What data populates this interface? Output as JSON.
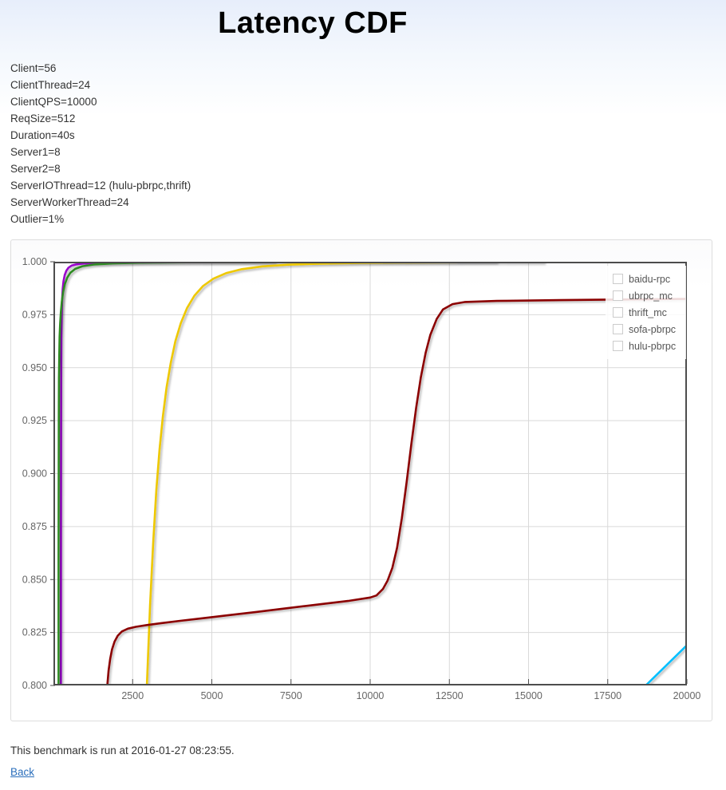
{
  "page": {
    "title": "Latency CDF"
  },
  "params": [
    "Client=56",
    "ClientThread=24",
    "ClientQPS=10000",
    "ReqSize=512",
    "Duration=40s",
    "Server1=8",
    "Server2=8",
    "ServerIOThread=12 (hulu-pbrpc,thrift)",
    "ServerWorkerThread=24",
    "Outlier=1%"
  ],
  "footer": {
    "note": "This benchmark is run at 2016-01-27 08:23:55.",
    "back_label": "Back"
  },
  "colors": {
    "plot_border": "#4d4d4d",
    "gridline": "#d9d9d9",
    "tick_label": "#666666",
    "legend_text": "#555555",
    "link_blue": "#2a6ebb"
  },
  "chart_data": {
    "type": "line",
    "title": "Latency CDF",
    "xlabel": "",
    "ylabel": "",
    "xlim": [
      0,
      20000
    ],
    "ylim": [
      0.8,
      1.0
    ],
    "x_ticks": [
      2500,
      5000,
      7500,
      10000,
      12500,
      15000,
      17500,
      20000
    ],
    "y_ticks": [
      1.0,
      0.975,
      0.95,
      0.925,
      0.9,
      0.875,
      0.85,
      0.825,
      0.8
    ],
    "grid": true,
    "legend_position": "top-right",
    "series": [
      {
        "name": "baidu-rpc",
        "color": "#9902cc",
        "points": [
          [
            235,
            0.8
          ],
          [
            237,
            0.87
          ],
          [
            240,
            0.91
          ],
          [
            243,
            0.94
          ],
          [
            246,
            0.955
          ],
          [
            250,
            0.964
          ],
          [
            256,
            0.9715
          ],
          [
            264,
            0.9775
          ],
          [
            276,
            0.9828
          ],
          [
            293,
            0.9872
          ],
          [
            318,
            0.9908
          ],
          [
            355,
            0.9937
          ],
          [
            405,
            0.9957
          ],
          [
            475,
            0.9972
          ],
          [
            575,
            0.9982
          ],
          [
            700,
            0.9987
          ],
          [
            900,
            0.9991
          ],
          [
            1300,
            0.9994
          ],
          [
            2000,
            0.9996
          ],
          [
            3000,
            0.99975
          ],
          [
            4800,
            0.99985
          ],
          [
            7000,
            0.9999
          ]
        ]
      },
      {
        "name": "ubrpc_mc",
        "color": "#2d8b22",
        "points": [
          [
            160,
            0.8
          ],
          [
            162,
            0.86
          ],
          [
            165,
            0.9
          ],
          [
            169,
            0.925
          ],
          [
            175,
            0.945
          ],
          [
            183,
            0.956
          ],
          [
            195,
            0.9645
          ],
          [
            212,
            0.9708
          ],
          [
            235,
            0.9762
          ],
          [
            265,
            0.9812
          ],
          [
            305,
            0.9857
          ],
          [
            360,
            0.9895
          ],
          [
            435,
            0.9925
          ],
          [
            535,
            0.9948
          ],
          [
            685,
            0.9966
          ],
          [
            915,
            0.9979
          ],
          [
            1270,
            0.9987
          ],
          [
            1870,
            0.9992
          ],
          [
            2770,
            0.99955
          ],
          [
            4200,
            0.99972
          ],
          [
            6500,
            0.99985
          ],
          [
            10000,
            0.99993
          ],
          [
            14000,
            1.0
          ]
        ]
      },
      {
        "name": "thrift_mc",
        "color": "#eec800",
        "points": [
          [
            2950,
            0.8
          ],
          [
            3050,
            0.838
          ],
          [
            3150,
            0.868
          ],
          [
            3250,
            0.8925
          ],
          [
            3350,
            0.9115
          ],
          [
            3450,
            0.9265
          ],
          [
            3570,
            0.9405
          ],
          [
            3700,
            0.952
          ],
          [
            3850,
            0.9625
          ],
          [
            4020,
            0.971
          ],
          [
            4220,
            0.9782
          ],
          [
            4450,
            0.984
          ],
          [
            4720,
            0.9885
          ],
          [
            5050,
            0.992
          ],
          [
            5450,
            0.9946
          ],
          [
            5950,
            0.9965
          ],
          [
            6600,
            0.9978
          ],
          [
            7400,
            0.9986
          ],
          [
            8400,
            0.9991
          ],
          [
            9700,
            0.99945
          ],
          [
            11500,
            0.99965
          ],
          [
            13500,
            0.99978
          ],
          [
            15500,
            0.99985
          ]
        ]
      },
      {
        "name": "sofa-pbrpc",
        "color": "#8b0000",
        "points": [
          [
            1700,
            0.8
          ],
          [
            1740,
            0.807
          ],
          [
            1790,
            0.8125
          ],
          [
            1850,
            0.817
          ],
          [
            1930,
            0.8207
          ],
          [
            2030,
            0.8235
          ],
          [
            2160,
            0.8255
          ],
          [
            2350,
            0.8268
          ],
          [
            2600,
            0.8277
          ],
          [
            2950,
            0.8285
          ],
          [
            3400,
            0.8294
          ],
          [
            4000,
            0.8305
          ],
          [
            4700,
            0.8317
          ],
          [
            5500,
            0.8331
          ],
          [
            6400,
            0.8347
          ],
          [
            7400,
            0.8365
          ],
          [
            8400,
            0.8383
          ],
          [
            9300,
            0.8399
          ],
          [
            10000,
            0.8415
          ],
          [
            10200,
            0.8425
          ],
          [
            10400,
            0.8455
          ],
          [
            10550,
            0.8495
          ],
          [
            10700,
            0.8555
          ],
          [
            10850,
            0.865
          ],
          [
            11000,
            0.879
          ],
          [
            11150,
            0.896
          ],
          [
            11300,
            0.914
          ],
          [
            11450,
            0.931
          ],
          [
            11600,
            0.9455
          ],
          [
            11750,
            0.957
          ],
          [
            11900,
            0.9655
          ],
          [
            12100,
            0.973
          ],
          [
            12300,
            0.9775
          ],
          [
            12600,
            0.98
          ],
          [
            13000,
            0.981
          ],
          [
            14000,
            0.9815
          ],
          [
            16000,
            0.9819
          ],
          [
            18000,
            0.9822
          ],
          [
            20000,
            0.9825
          ]
        ]
      },
      {
        "name": "hulu-pbrpc",
        "color": "#00bfff",
        "points": [
          [
            18700,
            0.8
          ],
          [
            19350,
            0.8095
          ],
          [
            20000,
            0.819
          ]
        ]
      }
    ]
  }
}
